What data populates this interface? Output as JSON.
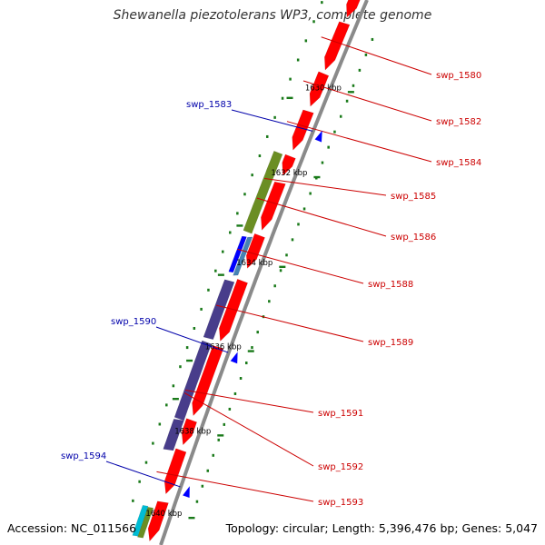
{
  "title": "Shewanella piezotolerans WP3, complete genome",
  "footer": {
    "accession": "Accession: NC_011566",
    "summary": "Topology: circular; Length: 5,396,476 bp; Genes: 5,047"
  },
  "colors": {
    "backbone": "#8a8a8a",
    "cds": "#ff0000",
    "trna": "#0000ff",
    "rrna_olive": "#6b8e23",
    "rrna_purple": "#483d8b",
    "tick": "#1a7a1a",
    "label_forward": "#cc0000",
    "label_reverse": "#0000aa"
  },
  "scale_labels": [
    {
      "text": "1630 kbp",
      "kbp": 1630
    },
    {
      "text": "1632 kbp",
      "kbp": 1632
    },
    {
      "text": "1634 kbp",
      "kbp": 1634
    },
    {
      "text": "1636 kbp",
      "kbp": 1636
    },
    {
      "text": "1638 kbp",
      "kbp": 1638
    },
    {
      "text": "1640 kbp",
      "kbp": 1640
    }
  ],
  "features_forward": [
    {
      "label": "swp_1580",
      "type": "cds"
    },
    {
      "label": "swp_1582",
      "type": "cds"
    },
    {
      "label": "swp_1584",
      "type": "cds"
    },
    {
      "label": "swp_1585",
      "type": "olive"
    },
    {
      "label": "swp_1586",
      "type": "cds"
    },
    {
      "label": "swp_1588",
      "type": "blue"
    },
    {
      "label": "swp_1589",
      "type": "purple"
    },
    {
      "label": "swp_1591",
      "type": "purple"
    },
    {
      "label": "swp_1592",
      "type": "cds"
    },
    {
      "label": "swp_1593",
      "type": "cds"
    }
  ],
  "features_reverse": [
    {
      "label": "swp_1583",
      "type": "trna"
    },
    {
      "label": "swp_1590",
      "type": "trna"
    },
    {
      "label": "swp_1594",
      "type": "trna"
    }
  ]
}
